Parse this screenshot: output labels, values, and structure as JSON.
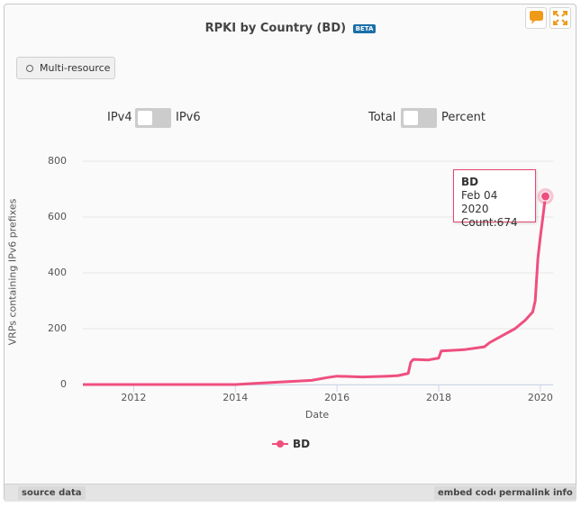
{
  "widget": {
    "title": "RPKI by Country (BD)",
    "beta_badge": "BETA",
    "multi_resource_label": "Multi-resource",
    "toggle1": {
      "left_label": "IPv4",
      "right_label": "IPv6"
    },
    "toggle2": {
      "left_label": "Total",
      "right_label": "Percent"
    },
    "footer": {
      "source_data": "source data",
      "embed_code": "embed code",
      "permalink": "permalink",
      "info": "info"
    },
    "colors": {
      "series": "#ef4f7f",
      "badge": "#1a6fa8",
      "icon": "#f09a1a"
    }
  },
  "chart_data": {
    "type": "line",
    "title": "RPKI by Country (BD)",
    "xlabel": "Date",
    "ylabel": "VRPs containing IPv6 prefixes",
    "xlim": [
      2011.0,
      2020.25
    ],
    "ylim": [
      0,
      800
    ],
    "x_ticks": [
      "2012",
      "2014",
      "2016",
      "2018",
      "2020"
    ],
    "y_ticks": [
      "0",
      "200",
      "400",
      "600",
      "800"
    ],
    "legend": "bottom-center",
    "series": [
      {
        "name": "BD",
        "x": [
          2011.0,
          2014.0,
          2014.5,
          2015.0,
          2015.5,
          2015.8,
          2016.0,
          2016.5,
          2017.0,
          2017.2,
          2017.4,
          2017.45,
          2017.5,
          2017.8,
          2018.0,
          2018.05,
          2018.5,
          2018.9,
          2019.0,
          2019.2,
          2019.5,
          2019.7,
          2019.85,
          2019.9,
          2019.95,
          2020.0,
          2020.05,
          2020.1
        ],
        "values": [
          0,
          0,
          5,
          10,
          15,
          25,
          30,
          27,
          30,
          32,
          40,
          80,
          90,
          88,
          95,
          120,
          125,
          135,
          150,
          170,
          200,
          230,
          260,
          300,
          450,
          530,
          600,
          674
        ]
      }
    ],
    "tooltip": {
      "series": "BD",
      "date": "Feb 04 2020",
      "count": "Count:674"
    }
  }
}
